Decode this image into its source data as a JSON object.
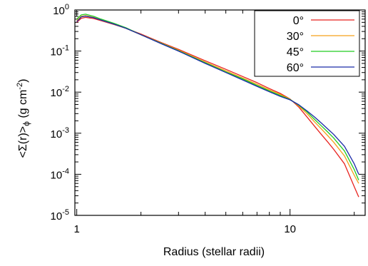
{
  "chart_data": {
    "type": "line",
    "xlabel": "Radius (stellar radii)",
    "ylabel_main": "<Σ(r)>",
    "ylabel_sub": "ϕ",
    "ylabel_units": " (g cm",
    "ylabel_exp": "-2",
    "ylabel_close": ")",
    "x_scale": "log",
    "y_scale": "log",
    "xlim": [
      0.98,
      22.5
    ],
    "ylim": [
      1e-05,
      1
    ],
    "x_ticks": [
      {
        "value": 1,
        "label": "1"
      },
      {
        "value": 10,
        "label": "10"
      }
    ],
    "y_ticks": [
      {
        "value": 1,
        "base": "10",
        "exp": "0"
      },
      {
        "value": 0.1,
        "base": "10",
        "exp": "-1"
      },
      {
        "value": 0.01,
        "base": "10",
        "exp": "-2"
      },
      {
        "value": 0.001,
        "base": "10",
        "exp": "-3"
      },
      {
        "value": 0.0001,
        "base": "10",
        "exp": "-4"
      },
      {
        "value": 1e-05,
        "base": "10",
        "exp": "-5"
      }
    ],
    "legend_position": "top-right",
    "grid": false,
    "series": [
      {
        "name": "0°",
        "color": "#e8221e",
        "x": [
          1.0,
          1.05,
          1.1,
          1.2,
          1.3,
          1.5,
          1.7,
          2.0,
          2.5,
          3.0,
          4.0,
          5.0,
          6.0,
          7.0,
          8.0,
          9.0,
          10.0,
          11.0,
          12.0,
          13.0,
          14.0,
          15.0,
          16.0,
          18.0,
          20.0,
          21.0
        ],
        "y": [
          0.5,
          0.63,
          0.66,
          0.62,
          0.55,
          0.44,
          0.36,
          0.26,
          0.16,
          0.11,
          0.058,
          0.036,
          0.024,
          0.017,
          0.0122,
          0.0093,
          0.0068,
          0.0043,
          0.0025,
          0.0015,
          0.00094,
          0.00062,
          0.00041,
          0.00018,
          5e-05,
          2.8e-05
        ]
      },
      {
        "name": "30°",
        "color": "#f5a01a",
        "x": [
          1.0,
          1.05,
          1.1,
          1.2,
          1.3,
          1.5,
          1.7,
          2.0,
          2.5,
          3.0,
          4.0,
          5.0,
          6.0,
          7.0,
          8.0,
          9.0,
          10.0,
          11.0,
          12.0,
          13.0,
          14.0,
          15.0,
          16.0,
          18.0,
          20.0,
          21.0
        ],
        "y": [
          0.55,
          0.7,
          0.73,
          0.66,
          0.57,
          0.45,
          0.36,
          0.25,
          0.155,
          0.105,
          0.054,
          0.033,
          0.022,
          0.0155,
          0.0113,
          0.0088,
          0.0067,
          0.0046,
          0.003,
          0.0019,
          0.00128,
          0.00088,
          0.00061,
          0.00028,
          9.5e-05,
          6e-05
        ]
      },
      {
        "name": "45°",
        "color": "#22cc22",
        "x": [
          1.0,
          1.05,
          1.1,
          1.2,
          1.3,
          1.5,
          1.7,
          2.0,
          2.5,
          3.0,
          4.0,
          5.0,
          6.0,
          7.0,
          8.0,
          9.0,
          10.0,
          11.0,
          12.0,
          13.0,
          14.0,
          15.0,
          16.0,
          18.0,
          20.0,
          21.0
        ],
        "y": [
          0.6,
          0.76,
          0.79,
          0.7,
          0.6,
          0.47,
          0.37,
          0.25,
          0.153,
          0.102,
          0.052,
          0.031,
          0.021,
          0.0145,
          0.0107,
          0.0083,
          0.0066,
          0.0048,
          0.0033,
          0.0022,
          0.00152,
          0.00108,
          0.00077,
          0.00037,
          0.00013,
          7.2e-05
        ]
      },
      {
        "name": "60°",
        "color": "#1a2aa8",
        "x": [
          1.0,
          1.05,
          1.1,
          1.2,
          1.3,
          1.5,
          1.7,
          2.0,
          2.5,
          3.0,
          4.0,
          5.0,
          6.0,
          7.0,
          8.0,
          9.0,
          10.0,
          11.0,
          12.0,
          13.0,
          14.0,
          15.0,
          16.0,
          18.0,
          20.0,
          21.0
        ],
        "y": [
          0.52,
          0.68,
          0.71,
          0.65,
          0.57,
          0.45,
          0.36,
          0.25,
          0.15,
          0.1,
          0.05,
          0.03,
          0.0198,
          0.0138,
          0.0102,
          0.0079,
          0.0065,
          0.0049,
          0.0035,
          0.0025,
          0.00178,
          0.00128,
          0.00094,
          0.00048,
          0.00018,
          0.0001
        ]
      }
    ]
  }
}
